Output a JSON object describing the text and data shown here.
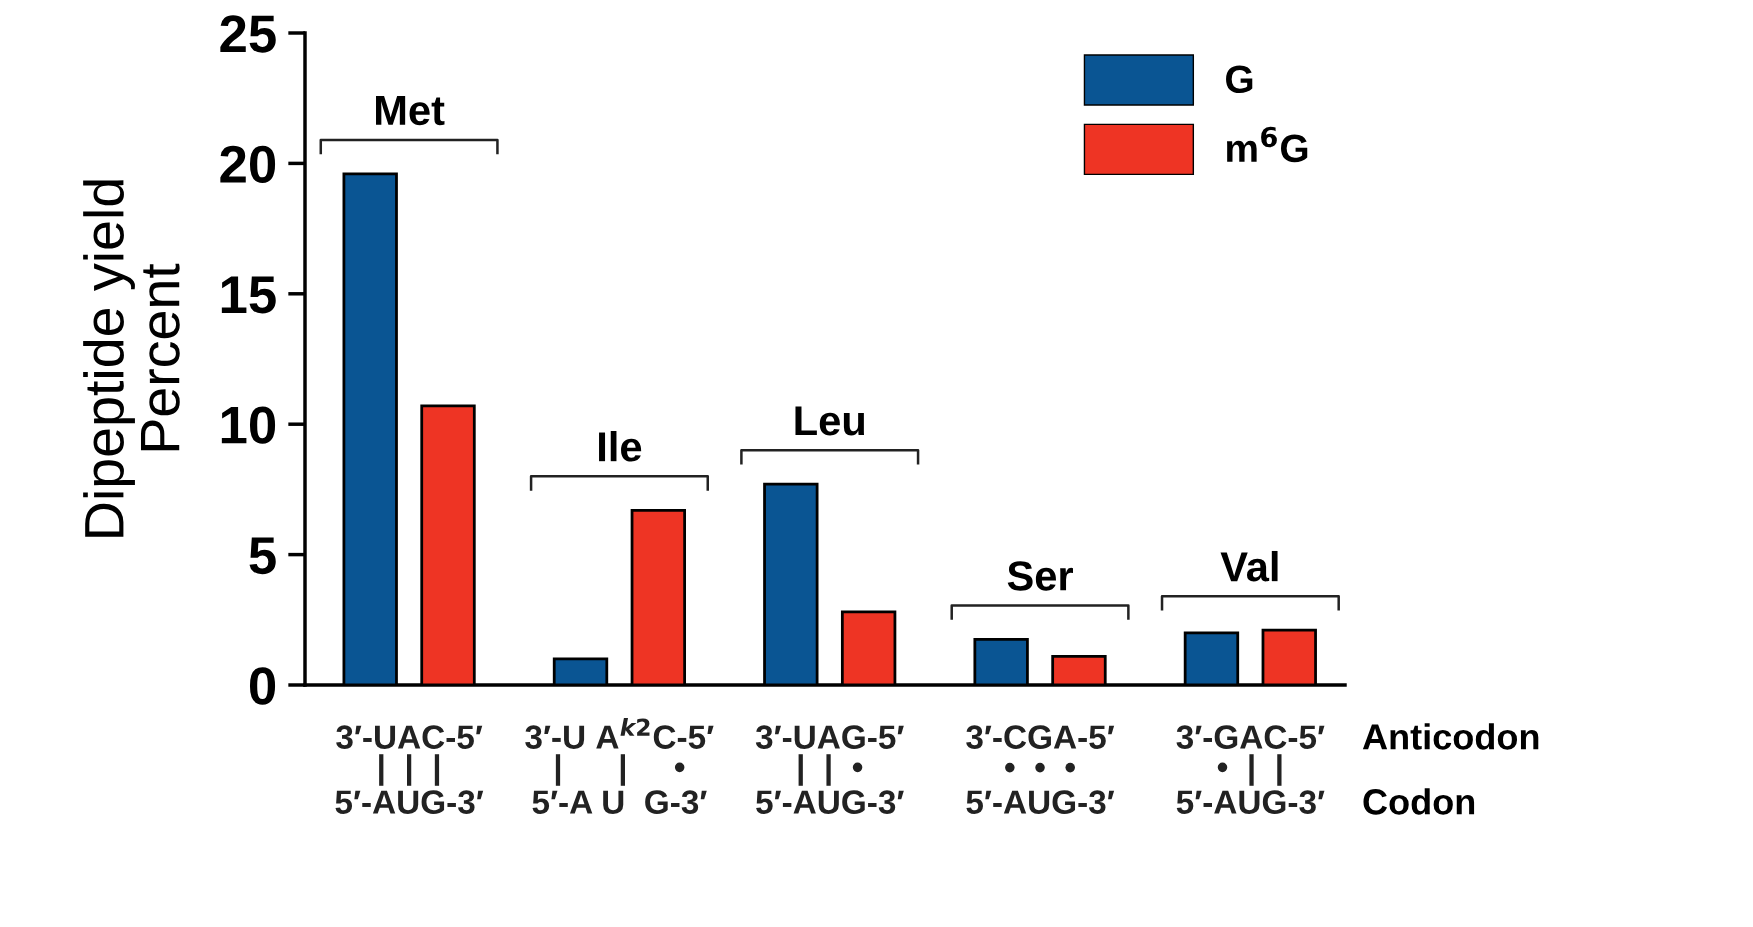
{
  "chart_data": {
    "type": "bar",
    "ylabel": "Dipeptide yield\nPercent",
    "categories": [
      "Met",
      "Ile",
      "Leu",
      "Ser",
      "Val"
    ],
    "series": [
      {
        "name": "G",
        "color": "#0a5593",
        "values": [
          19.6,
          1.0,
          7.7,
          1.75,
          2.0
        ]
      },
      {
        "name": "m$^{6}$G",
        "color": "#ee3424",
        "values": [
          10.7,
          6.7,
          2.8,
          1.1,
          2.1
        ]
      }
    ],
    "ylim": [
      0,
      25
    ],
    "yticks": [
      0,
      5,
      10,
      15,
      20,
      25
    ],
    "grid": false,
    "legend": "top right",
    "annotations": [
      "3′-UAC-5′",
      "3′-U A$^{k2}$C-5′",
      "3′-UAG-5′",
      "3′-CGA-5′",
      "3′-GAC-5′",
      "|  |  |",
      "|      |     •",
      "|  |  •",
      "•  •  •",
      "•  |  |",
      "5′-AUG-3′",
      "5′-A U  G-3′",
      "5′-AUG-3′",
      "5′-AUG-3′",
      "5′-AUG-3′",
      "Anticodon",
      "Codon"
    ]
  }
}
